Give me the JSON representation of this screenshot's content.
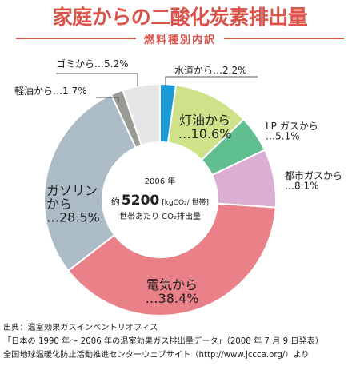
{
  "header": {
    "title": "家庭からの二酸化炭素排出量",
    "subtitle": "燃料種別内訳"
  },
  "center": {
    "year": "2006 年",
    "prefix": "約",
    "value": "5200",
    "unit": "[kgCO₂/ 世帯]",
    "caption": "世帯あたり CO₂排出量"
  },
  "chart_data": {
    "type": "pie",
    "donut": true,
    "title": "家庭からの二酸化炭素排出量",
    "subtitle": "燃料種別内訳",
    "unit": "%",
    "slices": [
      {
        "label": "水道から…2.2%",
        "name": "水道から",
        "value": 2.2,
        "color": "#1a9ad6"
      },
      {
        "label": "灯油から…10.6%",
        "name": "灯油から",
        "value": 10.6,
        "color": "#cfe28a"
      },
      {
        "label": "LP ガスから…5.1%",
        "name": "LP ガスから",
        "value": 5.1,
        "color": "#5fbf8f"
      },
      {
        "label": "都市ガスから…8.1%",
        "name": "都市ガスから",
        "value": 8.1,
        "color": "#dcaed4"
      },
      {
        "label": "電気から…38.4%",
        "name": "電気から",
        "value": 38.4,
        "color": "#ea8088"
      },
      {
        "label": "ガソリンから…28.5%",
        "name": "ガソリンから",
        "value": 28.5,
        "color": "#acbcc6"
      },
      {
        "label": "軽油から…1.7%",
        "name": "軽油から",
        "value": 1.7,
        "color": "#9a9a94"
      },
      {
        "label": "ゴミから…5.2%",
        "name": "ゴミから",
        "value": 5.2,
        "color": "#e6e6e8"
      }
    ]
  },
  "source": {
    "line1": "出典：温室効果ガスインベントリオフィス",
    "line2": "「日本の 1990 年～ 2006 年の温室効果ガス排出量データ」（2008 年 7 月 9 日発表）",
    "line3": "全国地球温暖化防止活動推進センターウェブサイト（http://www.jccca.org/）より"
  }
}
